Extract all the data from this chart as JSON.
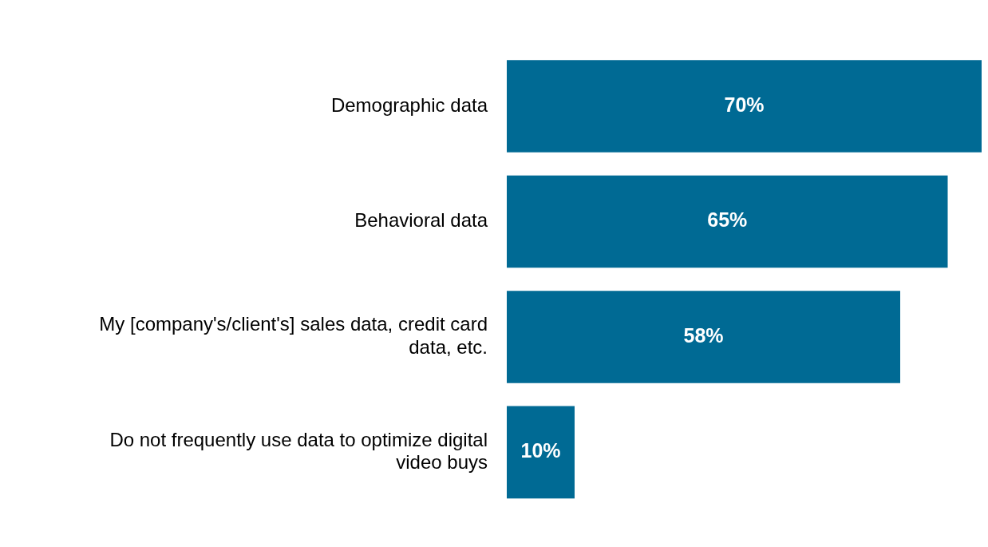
{
  "chart_data": {
    "type": "bar",
    "orientation": "horizontal",
    "categories": [
      "Demographic data",
      "Behavioral data",
      "My [company's/client's] sales data, credit card data, etc.",
      "Do not frequently use data to optimize digital video buys"
    ],
    "values": [
      70,
      65,
      58,
      10
    ],
    "value_labels": [
      "70%",
      "65%",
      "58%",
      "10%"
    ],
    "color": "#006a94",
    "grid": false,
    "legend": false
  }
}
